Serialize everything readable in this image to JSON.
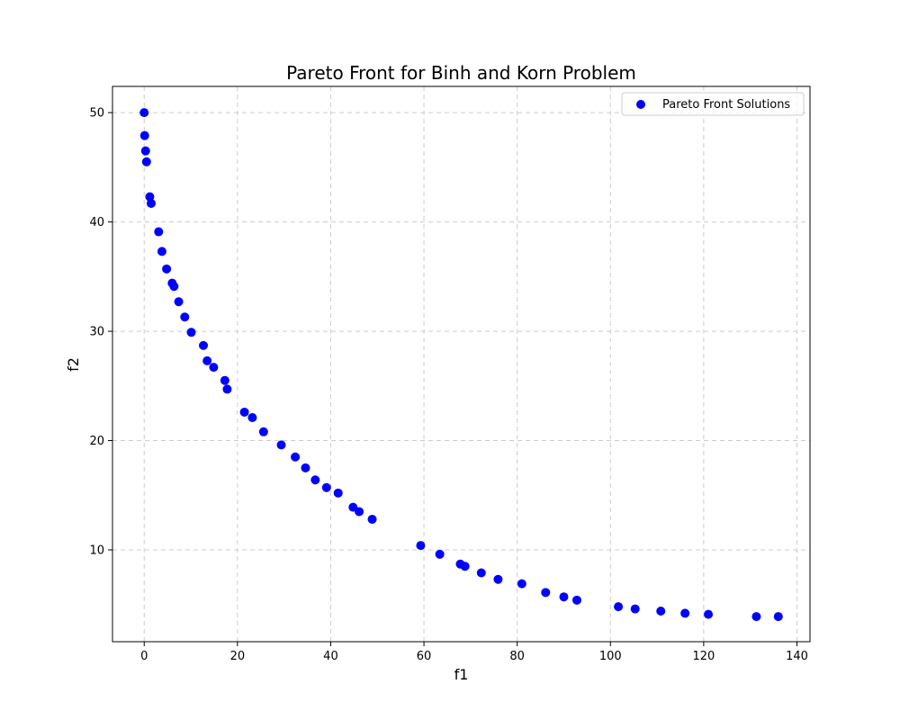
{
  "chart_data": {
    "type": "scatter",
    "title": "Pareto Front for Binh and Korn Problem",
    "xlabel": "f1",
    "ylabel": "f2",
    "xlim": [
      -6.8,
      142.8
    ],
    "ylim": [
      1.6,
      52.4
    ],
    "xticks": [
      0,
      20,
      40,
      60,
      80,
      100,
      120,
      140
    ],
    "yticks": [
      10,
      20,
      30,
      40,
      50
    ],
    "grid": true,
    "legend": "top-right",
    "series": [
      {
        "name": "Pareto Front Solutions",
        "color": "#0000ff",
        "points": [
          [
            0.0,
            50.0
          ],
          [
            0.1,
            47.9
          ],
          [
            0.3,
            46.5
          ],
          [
            0.5,
            45.5
          ],
          [
            1.2,
            42.3
          ],
          [
            1.5,
            41.7
          ],
          [
            3.1,
            39.1
          ],
          [
            3.8,
            37.3
          ],
          [
            4.8,
            35.7
          ],
          [
            6.0,
            34.4
          ],
          [
            6.4,
            34.1
          ],
          [
            7.4,
            32.7
          ],
          [
            8.7,
            31.3
          ],
          [
            10.1,
            29.9
          ],
          [
            12.7,
            28.7
          ],
          [
            13.5,
            27.3
          ],
          [
            14.9,
            26.7
          ],
          [
            17.3,
            25.5
          ],
          [
            17.8,
            24.7
          ],
          [
            21.5,
            22.6
          ],
          [
            23.2,
            22.1
          ],
          [
            25.6,
            20.8
          ],
          [
            29.4,
            19.6
          ],
          [
            32.4,
            18.5
          ],
          [
            34.6,
            17.5
          ],
          [
            36.7,
            16.4
          ],
          [
            39.1,
            15.7
          ],
          [
            41.6,
            15.2
          ],
          [
            44.8,
            13.9
          ],
          [
            46.1,
            13.5
          ],
          [
            48.9,
            12.8
          ],
          [
            59.3,
            10.4
          ],
          [
            63.4,
            9.6
          ],
          [
            67.8,
            8.7
          ],
          [
            68.8,
            8.5
          ],
          [
            72.3,
            7.9
          ],
          [
            75.9,
            7.3
          ],
          [
            81.0,
            6.9
          ],
          [
            86.1,
            6.1
          ],
          [
            90.0,
            5.7
          ],
          [
            92.8,
            5.4
          ],
          [
            101.7,
            4.8
          ],
          [
            105.3,
            4.6
          ],
          [
            110.8,
            4.4
          ],
          [
            116.0,
            4.2
          ],
          [
            121.0,
            4.1
          ],
          [
            131.3,
            3.9
          ],
          [
            136.0,
            3.9
          ]
        ]
      }
    ]
  }
}
